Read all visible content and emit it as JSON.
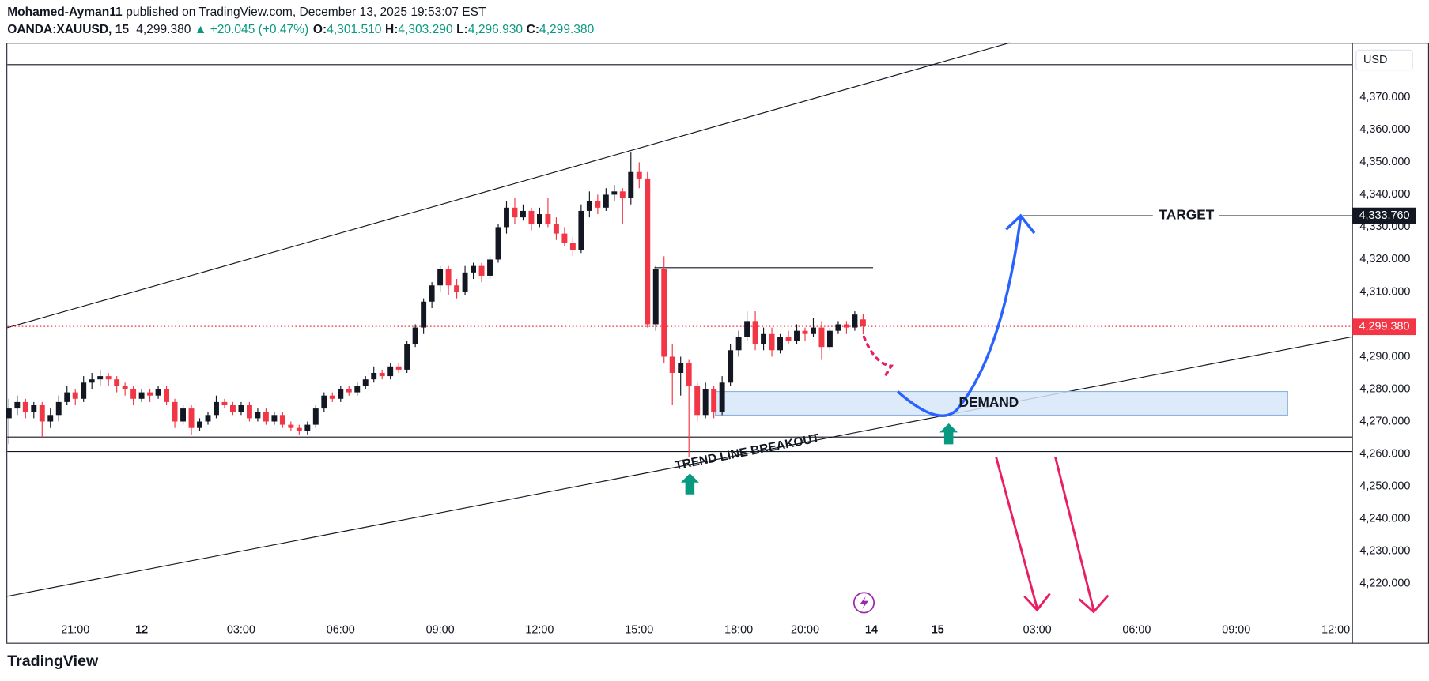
{
  "header": {
    "author": "Mohamed-Ayman11",
    "published": "published on TradingView.com, December 13, 2025 19:53:07 EST",
    "symbol": "OANDA:XAUUSD, 15",
    "last": "4,299.380",
    "change": "▲ +20.045 (+0.47%)",
    "open": {
      "label": "O:",
      "value": "4,301.510"
    },
    "high": {
      "label": "H:",
      "value": "4,303.290"
    },
    "low": {
      "label": "L:",
      "value": "4,296.930"
    },
    "close": {
      "label": "C:",
      "value": "4,299.380"
    }
  },
  "annotations": {
    "target": "TARGET",
    "target_price": "4,333.760",
    "demand": "DEMAND",
    "breakout": "TREND LINE BREAKOUT"
  },
  "footer": {
    "brand": "TradingView"
  },
  "chart_data": {
    "type": "candlestick",
    "currency": "USD",
    "up_color": "#131722",
    "down_color": "#f23645",
    "grid": false,
    "ylim": [
      4201.7,
      4386.6
    ],
    "yticks": [
      {
        "value": 4370,
        "label": "4,370.000"
      },
      {
        "value": 4360,
        "label": "4,360.000"
      },
      {
        "value": 4350,
        "label": "4,350.000"
      },
      {
        "value": 4340,
        "label": "4,340.000"
      },
      {
        "value": 4330,
        "label": "4,330.000"
      },
      {
        "value": 4320,
        "label": "4,320.000"
      },
      {
        "value": 4310,
        "label": "4,310.000"
      },
      {
        "value": 4290,
        "label": "4,290.000"
      },
      {
        "value": 4280,
        "label": "4,280.000"
      },
      {
        "value": 4270,
        "label": "4,270.000"
      },
      {
        "value": 4260,
        "label": "4,260.000"
      },
      {
        "value": 4250,
        "label": "4,250.000"
      },
      {
        "value": 4240,
        "label": "4,240.000"
      },
      {
        "value": 4230,
        "label": "4,230.000"
      },
      {
        "value": 4220,
        "label": "4,220.000"
      }
    ],
    "xlim": [
      -0.2,
      161.9
    ],
    "xticks": [
      {
        "value": 8,
        "label": "21:00"
      },
      {
        "value": 16,
        "label": "12"
      },
      {
        "value": 28,
        "label": "03:00"
      },
      {
        "value": 40,
        "label": "06:00"
      },
      {
        "value": 52,
        "label": "09:00"
      },
      {
        "value": 64,
        "label": "12:00"
      },
      {
        "value": 76,
        "label": "15:00"
      },
      {
        "value": 88,
        "label": "18:00"
      },
      {
        "value": 96,
        "label": "20:00"
      },
      {
        "value": 104,
        "label": "14"
      },
      {
        "value": 112,
        "label": "15"
      },
      {
        "value": 124,
        "label": "03:00"
      },
      {
        "value": 136,
        "label": "06:00"
      },
      {
        "value": 148,
        "label": "09:00"
      },
      {
        "value": 160,
        "label": "12:00"
      }
    ],
    "ohlc": [
      [
        4271,
        4277,
        4263,
        4274
      ],
      [
        4274,
        4278,
        4272,
        4276
      ],
      [
        4276,
        4277,
        4271,
        4273
      ],
      [
        4273,
        4276,
        4271,
        4275
      ],
      [
        4275,
        4276,
        4265,
        4270
      ],
      [
        4270,
        4274,
        4268,
        4272
      ],
      [
        4272,
        4278,
        4270,
        4276
      ],
      [
        4276,
        4281,
        4275,
        4279
      ],
      [
        4279,
        4280,
        4275,
        4277
      ],
      [
        4277,
        4284,
        4276,
        4282
      ],
      [
        4282,
        4285,
        4280,
        4283
      ],
      [
        4283,
        4286,
        4281,
        4284
      ],
      [
        4284,
        4285,
        4281,
        4283
      ],
      [
        4283,
        4284,
        4279,
        4281
      ],
      [
        4281,
        4282,
        4278,
        4280
      ],
      [
        4280,
        4281,
        4275,
        4277
      ],
      [
        4277,
        4280,
        4276,
        4279
      ],
      [
        4279,
        4280,
        4276,
        4278
      ],
      [
        4278,
        4281,
        4277,
        4280
      ],
      [
        4280,
        4281,
        4275,
        4276
      ],
      [
        4276,
        4277,
        4268,
        4270
      ],
      [
        4270,
        4275,
        4269,
        4274
      ],
      [
        4274,
        4275,
        4266,
        4268
      ],
      [
        4268,
        4271,
        4267,
        4270
      ],
      [
        4270,
        4273,
        4269,
        4272
      ],
      [
        4272,
        4278,
        4271,
        4276
      ],
      [
        4276,
        4277,
        4274,
        4275
      ],
      [
        4275,
        4276,
        4272,
        4273
      ],
      [
        4273,
        4276,
        4272,
        4275
      ],
      [
        4275,
        4276,
        4270,
        4271
      ],
      [
        4271,
        4274,
        4270,
        4273
      ],
      [
        4273,
        4274,
        4269,
        4270
      ],
      [
        4270,
        4273,
        4269,
        4272
      ],
      [
        4272,
        4273,
        4268,
        4269
      ],
      [
        4269,
        4270,
        4267,
        4268
      ],
      [
        4268,
        4269,
        4266,
        4267
      ],
      [
        4267,
        4270,
        4266,
        4269
      ],
      [
        4269,
        4275,
        4268,
        4274
      ],
      [
        4274,
        4279,
        4273,
        4278
      ],
      [
        4278,
        4279,
        4276,
        4277
      ],
      [
        4277,
        4281,
        4276,
        4280
      ],
      [
        4280,
        4281,
        4278,
        4279
      ],
      [
        4279,
        4282,
        4278,
        4281
      ],
      [
        4281,
        4284,
        4280,
        4283
      ],
      [
        4283,
        4287,
        4282,
        4285
      ],
      [
        4285,
        4286,
        4283,
        4284
      ],
      [
        4284,
        4288,
        4283,
        4287
      ],
      [
        4287,
        4288,
        4285,
        4286
      ],
      [
        4286,
        4295,
        4285,
        4294
      ],
      [
        4294,
        4300,
        4293,
        4299
      ],
      [
        4299,
        4308,
        4297,
        4307
      ],
      [
        4307,
        4313,
        4305,
        4312
      ],
      [
        4312,
        4318,
        4310,
        4317
      ],
      [
        4317,
        4318,
        4309,
        4312
      ],
      [
        4312,
        4314,
        4308,
        4310
      ],
      [
        4310,
        4318,
        4309,
        4316
      ],
      [
        4316,
        4319,
        4314,
        4318
      ],
      [
        4318,
        4319,
        4313,
        4315
      ],
      [
        4315,
        4321,
        4314,
        4320
      ],
      [
        4320,
        4331,
        4319,
        4330
      ],
      [
        4330,
        4338,
        4328,
        4336
      ],
      [
        4336,
        4339,
        4331,
        4333
      ],
      [
        4333,
        4337,
        4332,
        4335
      ],
      [
        4335,
        4336,
        4329,
        4331
      ],
      [
        4331,
        4336,
        4330,
        4334
      ],
      [
        4334,
        4339,
        4330,
        4331
      ],
      [
        4331,
        4333,
        4326,
        4328
      ],
      [
        4328,
        4330,
        4324,
        4325
      ],
      [
        4325,
        4327,
        4321,
        4323
      ],
      [
        4323,
        4337,
        4322,
        4335
      ],
      [
        4335,
        4341,
        4333,
        4338
      ],
      [
        4338,
        4340,
        4334,
        4336
      ],
      [
        4336,
        4342,
        4335,
        4340
      ],
      [
        4340,
        4343,
        4338,
        4341
      ],
      [
        4341,
        4342,
        4331,
        4339
      ],
      [
        4339,
        4353,
        4337,
        4347
      ],
      [
        4347,
        4350,
        4342,
        4345
      ],
      [
        4345,
        4347,
        4299,
        4300
      ],
      [
        4300,
        4318,
        4298,
        4317
      ],
      [
        4317,
        4321,
        4288,
        4290
      ],
      [
        4290,
        4294,
        4275,
        4285
      ],
      [
        4285,
        4290,
        4278,
        4288
      ],
      [
        4288,
        4289,
        4259,
        4281
      ],
      [
        4281,
        4282,
        4270,
        4272
      ],
      [
        4272,
        4282,
        4271,
        4280
      ],
      [
        4280,
        4281,
        4271,
        4273
      ],
      [
        4273,
        4284,
        4272,
        4282
      ],
      [
        4282,
        4294,
        4281,
        4292
      ],
      [
        4292,
        4298,
        4290,
        4296
      ],
      [
        4296,
        4304,
        4295,
        4301
      ],
      [
        4301,
        4304,
        4292,
        4294
      ],
      [
        4294,
        4299,
        4292,
        4297
      ],
      [
        4297,
        4299,
        4290,
        4292
      ],
      [
        4292,
        4297,
        4291,
        4296
      ],
      [
        4296,
        4298,
        4294,
        4295
      ],
      [
        4295,
        4300,
        4294,
        4298
      ],
      [
        4298,
        4299,
        4295,
        4297
      ],
      [
        4297,
        4302,
        4296,
        4299
      ],
      [
        4299,
        4301,
        4289,
        4293
      ],
      [
        4293,
        4299,
        4292,
        4298
      ],
      [
        4298,
        4301,
        4297,
        4300
      ],
      [
        4300,
        4301,
        4297,
        4299
      ],
      [
        4299,
        4304,
        4298,
        4303
      ],
      [
        4301.51,
        4303.29,
        4296.93,
        4299.38
      ]
    ]
  }
}
